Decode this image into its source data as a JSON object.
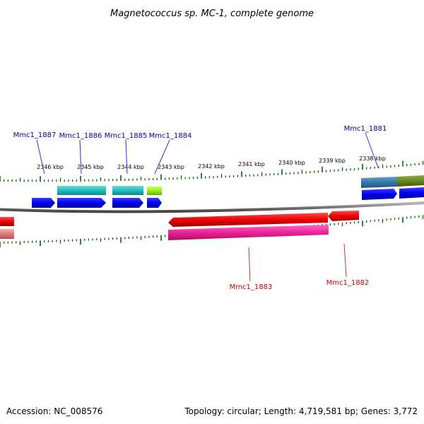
{
  "title": "Magnetococcus sp. MC-1, complete genome",
  "footer": {
    "accession": "Accession: NC_008576",
    "summary": "Topology: circular; Length: 4,719,581 bp; Genes: 3,772"
  },
  "scale_labels": [
    "2346 kbp",
    "2345 kbp",
    "2344 kbp",
    "2343 kbp",
    "2342 kbp",
    "2341 kbp",
    "2340 kbp",
    "2339 kbp",
    "2338 kbp"
  ],
  "gene_labels": {
    "forward": [
      "Mmc1_1887",
      "Mmc1_1886",
      "Mmc1_1885",
      "Mmc1_1884",
      "Mmc1_1881"
    ],
    "reverse": [
      "Mmc1_1883",
      "Mmc1_1882"
    ]
  },
  "colors": {
    "forward_cds": "#0000ee",
    "reverse_cds": "#ee0000",
    "forward_feature": "#33cccc",
    "reverse_feature": "#ee3399",
    "tick": "#006600",
    "forward_label": "#0000aa",
    "reverse_label": "#cc0000",
    "backbone": "#888888"
  }
}
